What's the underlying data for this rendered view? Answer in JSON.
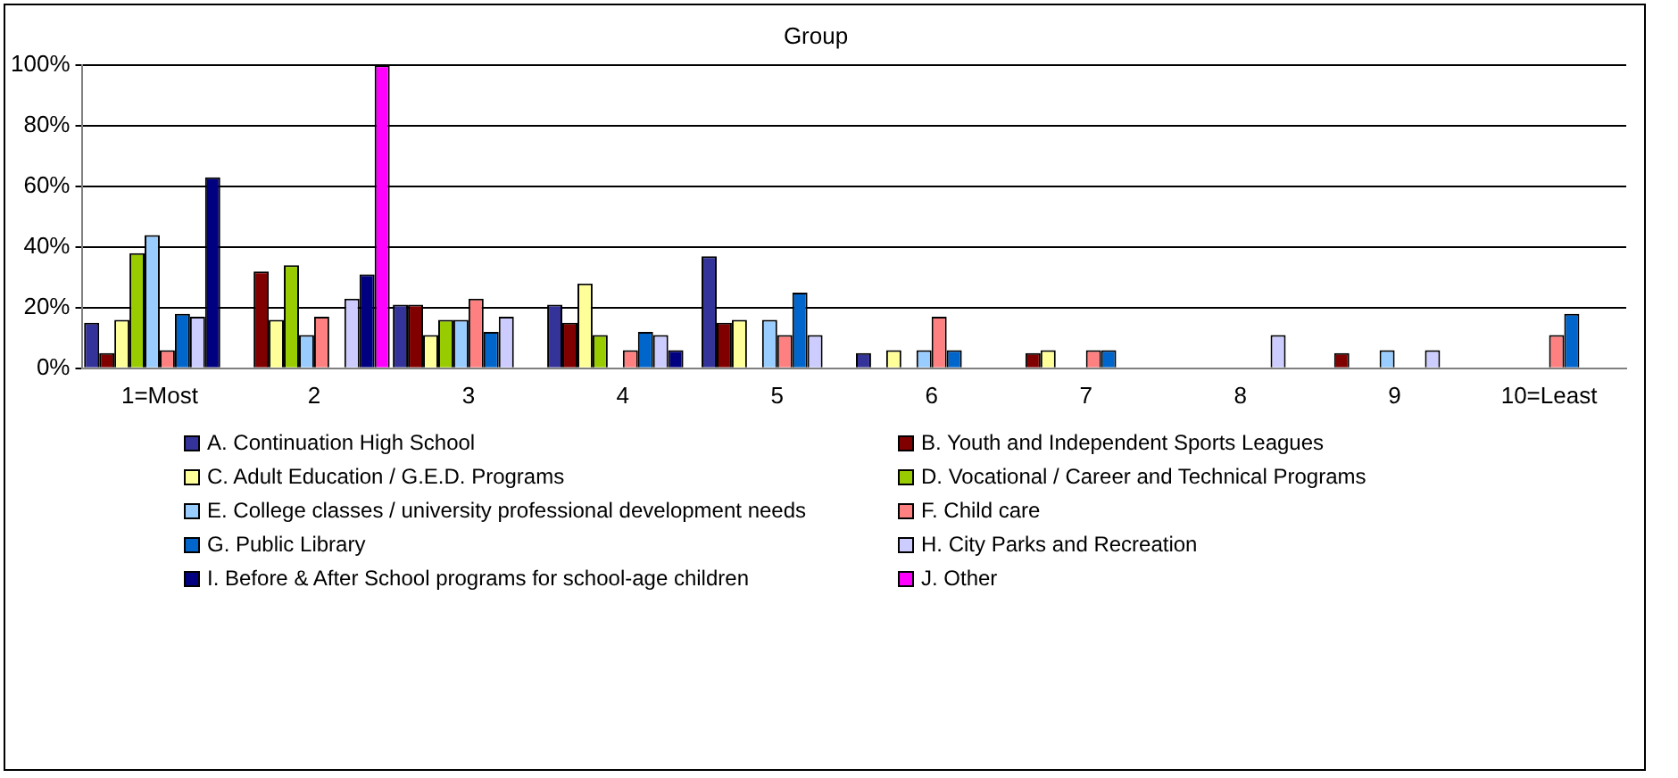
{
  "chart_data": {
    "type": "bar",
    "title": "Group",
    "categories": [
      "1=Most",
      "2",
      "3",
      "4",
      "5",
      "6",
      "7",
      "8",
      "9",
      "10=Least"
    ],
    "series": [
      {
        "name": "A.  Continuation High School",
        "color": "#333399",
        "values": [
          15,
          0,
          21,
          21,
          37,
          5,
          0,
          0,
          0,
          0
        ]
      },
      {
        "name": "B.  Youth and Independent Sports Leagues",
        "color": "#800000",
        "values": [
          5,
          32,
          21,
          15,
          15,
          0,
          5,
          0,
          5,
          0
        ]
      },
      {
        "name": "C.  Adult Education / G.E.D. Programs",
        "color": "#ffff99",
        "values": [
          16,
          16,
          11,
          28,
          16,
          6,
          6,
          0,
          0,
          0
        ]
      },
      {
        "name": "D.  Vocational / Career and Technical Programs",
        "color": "#99cc00",
        "values": [
          38,
          34,
          16,
          11,
          0,
          0,
          0,
          0,
          0,
          0
        ]
      },
      {
        "name": "E.  College classes / university professional development needs",
        "color": "#99ccff",
        "values": [
          44,
          11,
          16,
          0,
          16,
          6,
          0,
          0,
          6,
          0
        ]
      },
      {
        "name": "F.  Child care",
        "color": "#ff8080",
        "values": [
          6,
          17,
          23,
          6,
          11,
          17,
          6,
          0,
          0,
          11
        ]
      },
      {
        "name": "G.  Public Library",
        "color": "#0066cc",
        "values": [
          18,
          0,
          12,
          12,
          25,
          6,
          6,
          0,
          0,
          18
        ]
      },
      {
        "name": "H.  City Parks and Recreation",
        "color": "#ccccff",
        "values": [
          17,
          23,
          17,
          11,
          11,
          0,
          0,
          11,
          6,
          0
        ]
      },
      {
        "name": "I.  Before & After School programs for school-age children",
        "color": "#000080",
        "values": [
          63,
          31,
          0,
          6,
          0,
          0,
          0,
          0,
          0,
          0
        ]
      },
      {
        "name": "J. Other",
        "color": "#ff00ff",
        "values": [
          0,
          100,
          0,
          0,
          0,
          0,
          0,
          0,
          0,
          0
        ]
      }
    ],
    "ylim": [
      0,
      100
    ],
    "yticks": [
      {
        "value": 0,
        "label": "0%"
      },
      {
        "value": 20,
        "label": "20%"
      },
      {
        "value": 40,
        "label": "40%"
      },
      {
        "value": 60,
        "label": "60%"
      },
      {
        "value": 80,
        "label": "80%"
      },
      {
        "value": 100,
        "label": "100%"
      }
    ],
    "grid": "y",
    "legend": "bottom"
  }
}
